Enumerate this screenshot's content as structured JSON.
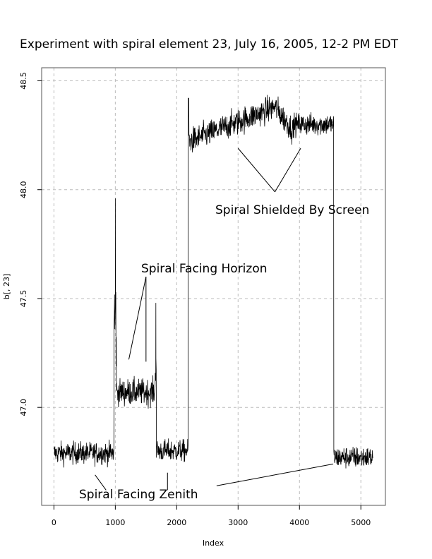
{
  "chart_data": {
    "type": "line",
    "title": "Experiment with spiral element 23, July 16, 2005, 12-2 PM EDT",
    "xlabel": "Index",
    "ylabel": "b[, 23]",
    "xlim": [
      -200,
      5400
    ],
    "ylim": [
      46.55,
      48.56
    ],
    "x_ticks": [
      0,
      1000,
      2000,
      3000,
      4000,
      5000
    ],
    "y_ticks": [
      47.0,
      47.5,
      48.0,
      48.5
    ],
    "x_tick_labels": [
      "0",
      "1000",
      "2000",
      "3000",
      "4000",
      "5000"
    ],
    "y_tick_labels": [
      "47.0",
      "47.5",
      "48.0",
      "48.5"
    ],
    "grid": true,
    "series": [
      {
        "values_description": "noisy signal",
        "segments": [
          {
            "x": [
              0,
              980
            ],
            "level": 46.79,
            "noise": 0.05
          },
          {
            "x": [
              980,
              1020
            ],
            "level": 47.4,
            "noise": 0.25,
            "spike": 47.96
          },
          {
            "x": [
              1020,
              1650
            ],
            "level": 47.07,
            "noise": 0.06
          },
          {
            "x": [
              1650,
              1670
            ],
            "level": 47.2,
            "noise": 0.1,
            "spike": 47.48
          },
          {
            "x": [
              1670,
              2190
            ],
            "level": 46.8,
            "noise": 0.05
          },
          {
            "x": [
              2190,
              2200
            ],
            "level": 48.42,
            "noise": 0.0
          },
          {
            "x": [
              2200,
              3600
            ],
            "level_start": 48.22,
            "level_end": 48.38,
            "noise": 0.06
          },
          {
            "x": [
              3600,
              3900
            ],
            "level_start": 48.38,
            "level_end": 48.27,
            "noise": 0.06
          },
          {
            "x": [
              3900,
              4560
            ],
            "level": 48.3,
            "noise": 0.05
          },
          {
            "x": [
              4560,
              5200
            ],
            "level": 46.77,
            "noise": 0.05
          }
        ]
      }
    ],
    "annotations": [
      {
        "text": "Spiral Facing Horizon",
        "x": 1430,
        "y": 47.62,
        "pointers": [
          [
            1500,
            47.6,
            1220,
            47.22
          ],
          [
            1500,
            47.6,
            1500,
            47.21
          ]
        ]
      },
      {
        "text": "Spiral Shielded By Screen",
        "x": 3520,
        "y": 47.93,
        "pointers": [
          [
            3600,
            47.99,
            3000,
            48.19
          ],
          [
            3600,
            47.99,
            4020,
            48.19
          ]
        ]
      },
      {
        "text": "Spiral Facing Zenith",
        "x": 1250,
        "y": 46.6,
        "pointers": [
          [
            850,
            46.62,
            670,
            46.69
          ],
          [
            1850,
            46.62,
            1850,
            46.7
          ],
          [
            2650,
            46.64,
            4550,
            46.74
          ]
        ]
      }
    ]
  },
  "colors": {
    "line": "#000000",
    "grid": "#bbbbbb",
    "frame": "#555555"
  }
}
